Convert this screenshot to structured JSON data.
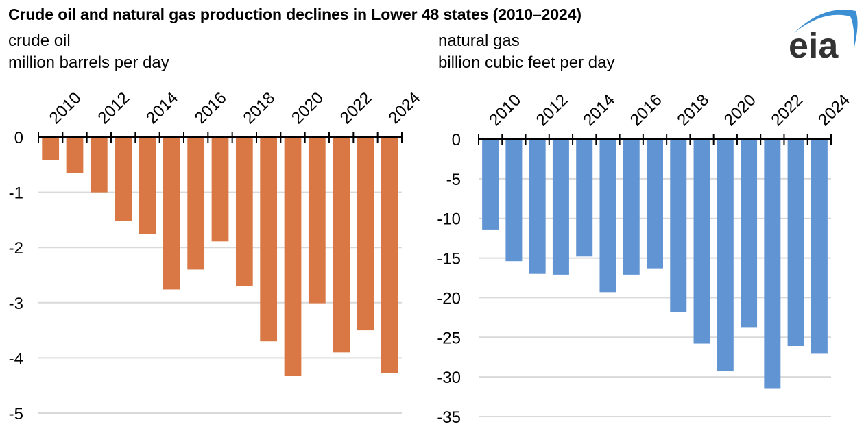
{
  "title": "Crude oil and natural gas production declines in Lower 48 states (2010–2024)",
  "logo": {
    "text": "eia",
    "text_color": "#333333",
    "arc_color": "#3d8fd4"
  },
  "chart_data": [
    {
      "type": "bar",
      "id": "crude",
      "title": "crude oil",
      "ylabel": "million barrels per day",
      "xlabel": "",
      "categories": [
        "2010",
        "2011",
        "2012",
        "2013",
        "2014",
        "2015",
        "2016",
        "2017",
        "2018",
        "2019",
        "2020",
        "2021",
        "2022",
        "2023",
        "2024"
      ],
      "x_tick_labels": [
        "2010",
        "2012",
        "2014",
        "2016",
        "2018",
        "2020",
        "2022",
        "2024"
      ],
      "values": [
        -0.41,
        -0.65,
        -1.0,
        -1.52,
        -1.75,
        -2.76,
        -2.4,
        -1.89,
        -2.7,
        -3.7,
        -4.33,
        -3.01,
        -3.9,
        -3.5,
        -4.27
      ],
      "ylim": [
        -5,
        0
      ],
      "y_ticks": [
        0,
        -1,
        -2,
        -3,
        -4,
        -5
      ],
      "grid": true,
      "x_axis_position": "top",
      "color": "#d97844"
    },
    {
      "type": "bar",
      "id": "gas",
      "title": "natural gas",
      "ylabel": "billion cubic feet per day",
      "xlabel": "",
      "categories": [
        "2010",
        "2011",
        "2012",
        "2013",
        "2014",
        "2015",
        "2016",
        "2017",
        "2018",
        "2019",
        "2020",
        "2021",
        "2022",
        "2023",
        "2024"
      ],
      "x_tick_labels": [
        "2010",
        "2012",
        "2014",
        "2016",
        "2018",
        "2020",
        "2022",
        "2024"
      ],
      "values": [
        -11.4,
        -15.4,
        -17.0,
        -17.1,
        -14.8,
        -19.3,
        -17.1,
        -16.3,
        -21.8,
        -25.8,
        -29.3,
        -23.8,
        -31.5,
        -26.1,
        -27.0
      ],
      "ylim": [
        -35,
        0
      ],
      "y_ticks": [
        0,
        -5,
        -10,
        -15,
        -20,
        -25,
        -30,
        -35
      ],
      "grid": true,
      "x_axis_position": "top",
      "color": "#6194d3"
    }
  ]
}
